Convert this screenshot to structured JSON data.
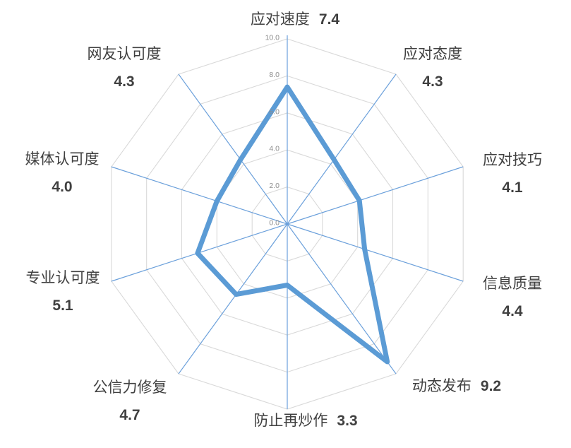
{
  "chart_data": {
    "type": "radar",
    "categories": [
      "应对速度",
      "应对态度",
      "应对技巧",
      "信息质量",
      "动态发布",
      "防止再炒作",
      "公信力修复",
      "专业认可度",
      "媒体认可度",
      "网友认可度"
    ],
    "values": [
      7.4,
      4.3,
      4.1,
      4.4,
      9.2,
      3.3,
      4.7,
      5.1,
      4.0,
      4.3
    ],
    "value_labels": [
      "7.4",
      "4.3",
      "4.1",
      "4.4",
      "9.2",
      "3.3",
      "4.7",
      "5.1",
      "4.0",
      "4.3"
    ],
    "radial_ticks": [
      "0.0",
      "2.0",
      "4.0",
      "6.0",
      "8.0",
      "10.0"
    ],
    "radial_tick_values": [
      0,
      2,
      4,
      6,
      8,
      10
    ],
    "radial_range": [
      0,
      10
    ],
    "grid_shape": "decagon",
    "legend": "none",
    "colors": {
      "series_line": "#5B9BD5",
      "spokes": "#6BA0DB",
      "grid_rings": "#D9D9D9",
      "tick_text": "#8C8C8C",
      "label_text": "#404040",
      "background": "#FFFFFF"
    },
    "series_line_width": 7
  }
}
